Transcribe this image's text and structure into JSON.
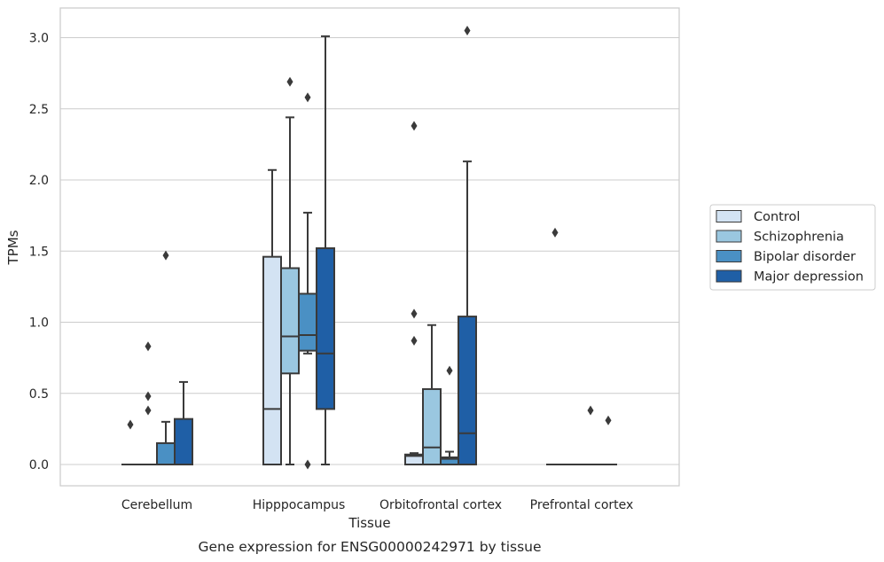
{
  "chart_data": {
    "type": "box",
    "caption": "Gene expression for ENSG00000242971 by tissue",
    "xlabel": "Tissue",
    "ylabel": "TPMs",
    "ylim": [
      -0.15,
      3.2
    ],
    "yticks": [
      0.0,
      0.5,
      1.0,
      1.5,
      2.0,
      2.5,
      3.0
    ],
    "ytick_labels": [
      "0.0",
      "0.5",
      "1.0",
      "1.5",
      "2.0",
      "2.5",
      "3.0"
    ],
    "grid": "horizontal",
    "legend_position": "right",
    "categories": [
      "Cerebellum",
      "Hipppocampus",
      "Orbitofrontal cortex",
      "Prefrontal cortex"
    ],
    "series": [
      {
        "name": "Control",
        "color": "#d3e3f3",
        "boxes": [
          {
            "min": 0,
            "q1": 0,
            "median": 0,
            "q3": 0,
            "max": 0,
            "outliers": [
              0.28
            ]
          },
          {
            "min": 0,
            "q1": 0,
            "median": 0.39,
            "q3": 1.46,
            "max": 2.07,
            "outliers": []
          },
          {
            "min": 0,
            "q1": 0,
            "median": 0.06,
            "q3": 0.07,
            "max": 0.08,
            "outliers": [
              0.87,
              1.06,
              2.38
            ]
          },
          {
            "min": 0,
            "q1": 0,
            "median": 0,
            "q3": 0,
            "max": 0,
            "outliers": [
              1.63
            ]
          }
        ]
      },
      {
        "name": "Schizophrenia",
        "color": "#9ac7e0",
        "boxes": [
          {
            "min": 0,
            "q1": 0,
            "median": 0,
            "q3": 0,
            "max": 0,
            "outliers": [
              0.38,
              0.48,
              0.83
            ]
          },
          {
            "min": 0,
            "q1": 0.64,
            "median": 0.9,
            "q3": 1.38,
            "max": 2.44,
            "outliers": [
              2.69
            ]
          },
          {
            "min": 0,
            "q1": 0,
            "median": 0.12,
            "q3": 0.53,
            "max": 0.98,
            "outliers": []
          },
          {
            "min": 0,
            "q1": 0,
            "median": 0,
            "q3": 0,
            "max": 0,
            "outliers": []
          }
        ]
      },
      {
        "name": "Bipolar disorder",
        "color": "#4a90c4",
        "boxes": [
          {
            "min": 0,
            "q1": 0,
            "median": 0,
            "q3": 0.15,
            "max": 0.3,
            "outliers": [
              1.47
            ]
          },
          {
            "min": 0.78,
            "q1": 0.8,
            "median": 0.91,
            "q3": 1.2,
            "max": 1.77,
            "outliers": [
              0,
              2.58
            ]
          },
          {
            "min": 0,
            "q1": 0,
            "median": 0.04,
            "q3": 0.05,
            "max": 0.09,
            "outliers": [
              0.66
            ]
          },
          {
            "min": 0,
            "q1": 0,
            "median": 0,
            "q3": 0,
            "max": 0,
            "outliers": [
              0.38
            ]
          }
        ]
      },
      {
        "name": "Major depression",
        "color": "#1f5fa6",
        "boxes": [
          {
            "min": 0,
            "q1": 0,
            "median": 0,
            "q3": 0.32,
            "max": 0.58,
            "outliers": []
          },
          {
            "min": 0,
            "q1": 0.39,
            "median": 0.78,
            "q3": 1.52,
            "max": 3.01,
            "outliers": []
          },
          {
            "min": 0,
            "q1": 0,
            "median": 0.22,
            "q3": 1.04,
            "max": 2.13,
            "outliers": [
              3.05
            ]
          },
          {
            "min": 0,
            "q1": 0,
            "median": 0,
            "q3": 0,
            "max": 0,
            "outliers": [
              0.31
            ]
          }
        ]
      }
    ]
  }
}
